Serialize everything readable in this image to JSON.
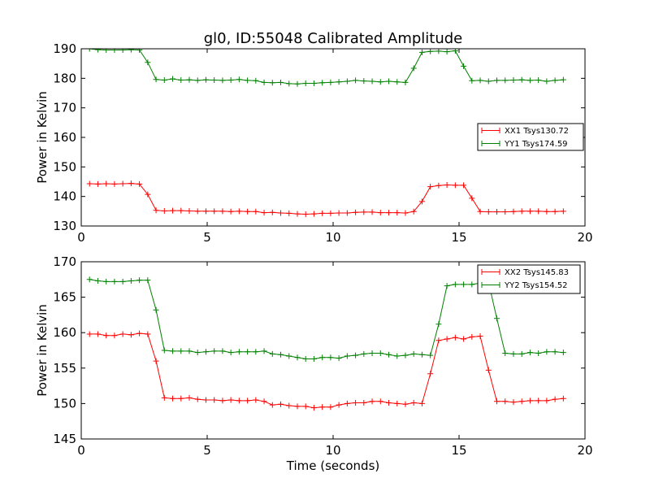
{
  "chart_data": [
    {
      "type": "line",
      "title": "gl0, ID:55048 Calibrated Amplitude",
      "xlabel": "",
      "ylabel": "Power in Kelvin",
      "xlim": [
        0,
        20
      ],
      "ylim": [
        130,
        190
      ],
      "xticks": [
        "0",
        "5",
        "10",
        "15",
        "20"
      ],
      "yticks": [
        "130",
        "140",
        "150",
        "160",
        "170",
        "180",
        "190"
      ],
      "legend_position": "right-middle",
      "grid": false,
      "x": [
        0.33,
        0.66,
        0.99,
        1.32,
        1.65,
        1.98,
        2.31,
        2.64,
        2.97,
        3.3,
        3.63,
        3.96,
        4.29,
        4.62,
        4.95,
        5.28,
        5.61,
        5.94,
        6.27,
        6.6,
        6.93,
        7.26,
        7.59,
        7.92,
        8.25,
        8.58,
        8.91,
        9.24,
        9.57,
        9.9,
        10.23,
        10.56,
        10.89,
        11.22,
        11.55,
        11.88,
        12.21,
        12.54,
        12.87,
        13.2,
        13.53,
        13.86,
        14.19,
        14.52,
        14.85,
        15.18,
        15.51,
        15.84,
        16.17,
        16.5,
        16.83,
        17.16,
        17.49,
        17.82,
        18.15,
        18.48,
        18.81,
        19.14
      ],
      "series": [
        {
          "name": "XX1 Tsys130.72",
          "color": "#ff0000",
          "values": [
            144.3,
            144.2,
            144.3,
            144.2,
            144.3,
            144.4,
            144.2,
            140.7,
            135.3,
            135.1,
            135.2,
            135.2,
            135.1,
            135.0,
            135.0,
            135.0,
            135.0,
            134.9,
            135.0,
            134.9,
            134.9,
            134.5,
            134.6,
            134.4,
            134.3,
            134.1,
            134.0,
            134.1,
            134.3,
            134.3,
            134.4,
            134.4,
            134.6,
            134.7,
            134.7,
            134.5,
            134.5,
            134.5,
            134.4,
            134.9,
            138.3,
            143.3,
            143.7,
            143.9,
            143.8,
            143.8,
            139.4,
            134.9,
            134.8,
            134.8,
            134.8,
            134.9,
            135.0,
            135.0,
            135.0,
            134.9,
            134.9,
            135.0
          ]
        },
        {
          "name": "YY1 Tsys174.59",
          "color": "#008000",
          "values": [
            190.0,
            189.7,
            189.6,
            189.6,
            189.6,
            189.7,
            189.6,
            185.4,
            179.6,
            179.4,
            179.8,
            179.4,
            179.5,
            179.3,
            179.5,
            179.4,
            179.3,
            179.4,
            179.6,
            179.3,
            179.2,
            178.6,
            178.5,
            178.6,
            178.2,
            178.1,
            178.3,
            178.3,
            178.5,
            178.6,
            178.8,
            179.0,
            179.3,
            179.1,
            179.0,
            178.8,
            179.0,
            178.8,
            178.6,
            183.4,
            188.8,
            189.1,
            189.2,
            189.0,
            189.3,
            184.1,
            179.2,
            179.3,
            179.0,
            179.3,
            179.3,
            179.4,
            179.5,
            179.3,
            179.4,
            179.0,
            179.3,
            179.5
          ]
        }
      ]
    },
    {
      "type": "line",
      "title": "",
      "xlabel": "Time (seconds)",
      "ylabel": "Power in Kelvin",
      "xlim": [
        0,
        20
      ],
      "ylim": [
        145,
        170
      ],
      "xticks": [
        "0",
        "5",
        "10",
        "15",
        "20"
      ],
      "yticks": [
        "145",
        "150",
        "155",
        "160",
        "165",
        "170"
      ],
      "legend_position": "top-right",
      "grid": false,
      "x": [
        0.33,
        0.66,
        0.99,
        1.32,
        1.65,
        1.98,
        2.31,
        2.64,
        2.97,
        3.3,
        3.63,
        3.96,
        4.29,
        4.62,
        4.95,
        5.28,
        5.61,
        5.94,
        6.27,
        6.6,
        6.93,
        7.26,
        7.59,
        7.92,
        8.25,
        8.58,
        8.91,
        9.24,
        9.57,
        9.9,
        10.23,
        10.56,
        10.89,
        11.22,
        11.55,
        11.88,
        12.21,
        12.54,
        12.87,
        13.2,
        13.53,
        13.86,
        14.19,
        14.52,
        14.85,
        15.18,
        15.51,
        15.84,
        16.17,
        16.5,
        16.83,
        17.16,
        17.49,
        17.82,
        18.15,
        18.48,
        18.81,
        19.14
      ],
      "series": [
        {
          "name": "XX2 Tsys145.83",
          "color": "#ff0000",
          "values": [
            159.8,
            159.8,
            159.6,
            159.6,
            159.8,
            159.7,
            159.9,
            159.8,
            156.0,
            150.8,
            150.7,
            150.7,
            150.8,
            150.6,
            150.5,
            150.5,
            150.4,
            150.5,
            150.4,
            150.4,
            150.5,
            150.3,
            149.8,
            149.9,
            149.7,
            149.6,
            149.6,
            149.4,
            149.5,
            149.5,
            149.8,
            150.0,
            150.1,
            150.1,
            150.3,
            150.3,
            150.1,
            150.0,
            149.9,
            150.1,
            150.0,
            154.2,
            158.9,
            159.1,
            159.3,
            159.1,
            159.4,
            159.5,
            154.7,
            150.3,
            150.3,
            150.2,
            150.3,
            150.4,
            150.4,
            150.4,
            150.6,
            150.7
          ]
        },
        {
          "name": "YY2 Tsys154.52",
          "color": "#008000",
          "values": [
            167.5,
            167.3,
            167.2,
            167.2,
            167.2,
            167.3,
            167.4,
            167.4,
            163.2,
            157.5,
            157.4,
            157.4,
            157.4,
            157.2,
            157.3,
            157.4,
            157.4,
            157.2,
            157.3,
            157.3,
            157.3,
            157.4,
            157.0,
            156.9,
            156.7,
            156.5,
            156.3,
            156.3,
            156.5,
            156.5,
            156.4,
            156.7,
            156.8,
            157.0,
            157.1,
            157.1,
            156.9,
            156.7,
            156.8,
            157.0,
            156.9,
            156.8,
            161.2,
            166.6,
            166.8,
            166.8,
            166.8,
            167.0,
            167.1,
            162.0,
            157.1,
            157.0,
            157.0,
            157.2,
            157.1,
            157.3,
            157.3,
            157.2
          ]
        }
      ]
    }
  ]
}
